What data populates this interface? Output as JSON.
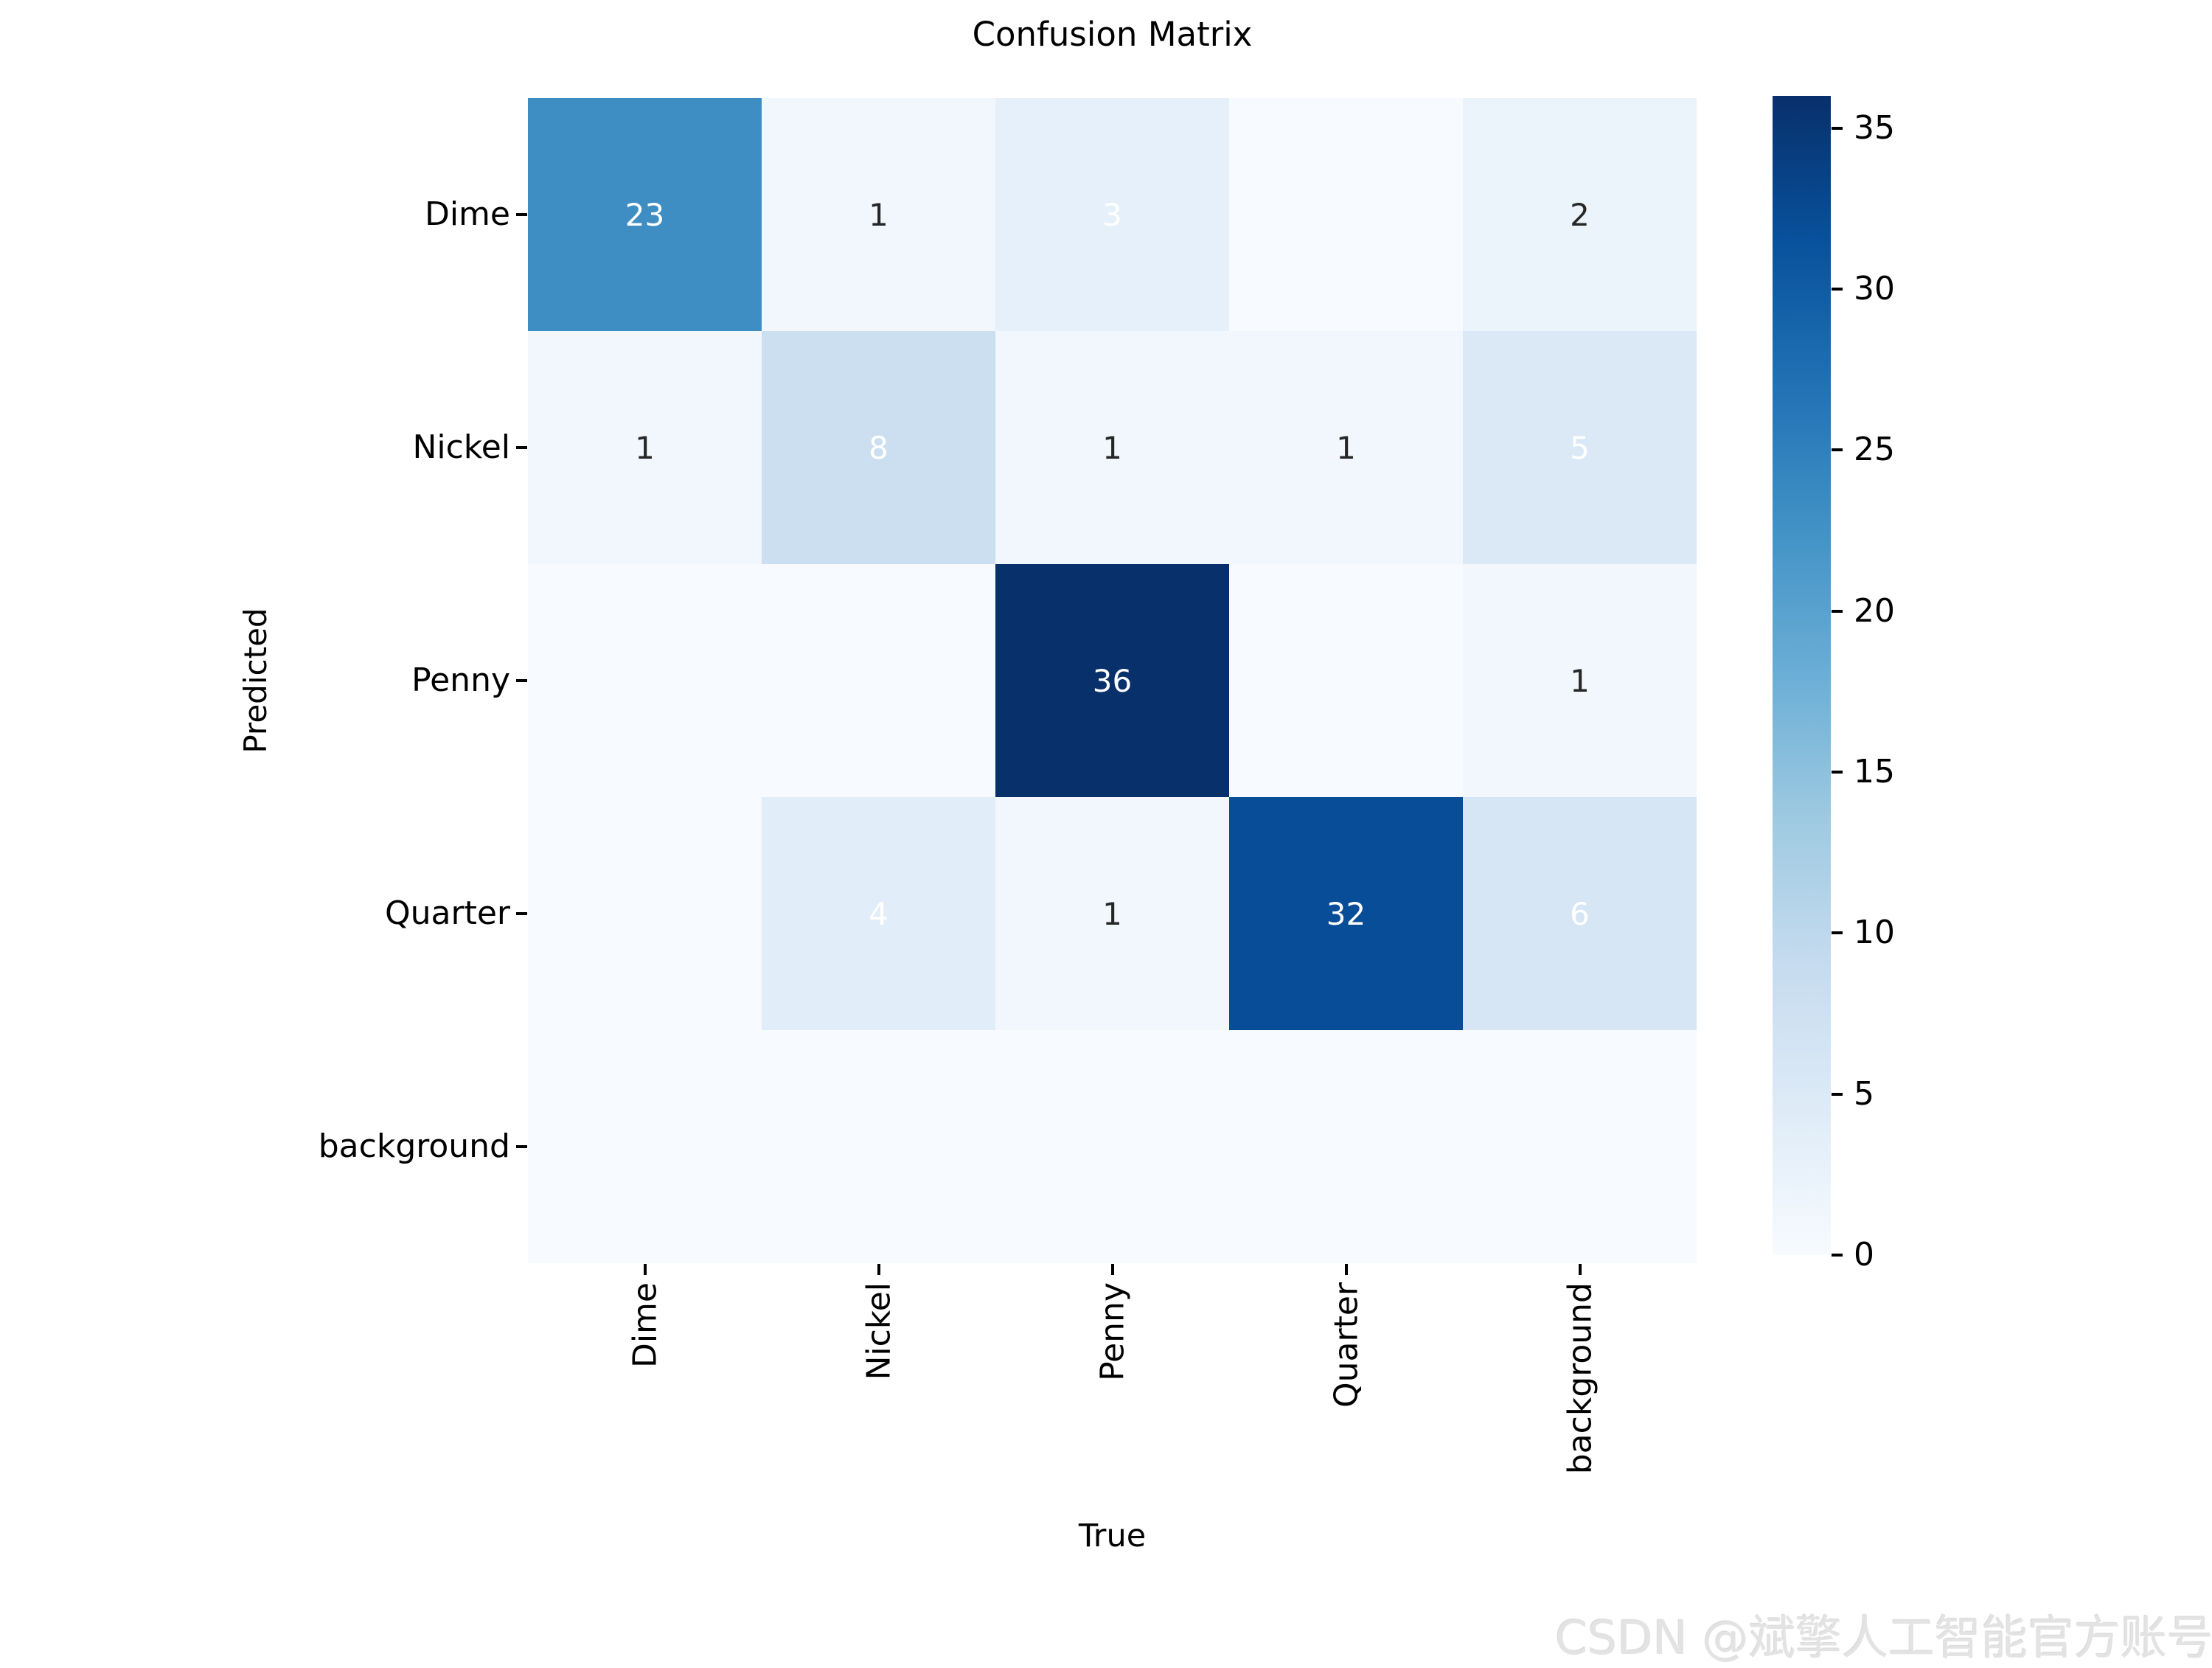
{
  "watermark": {
    "text": "CSDN @斌擎人工智能官方账号",
    "color": "#e3e3e3"
  },
  "chart_data": {
    "type": "heatmap",
    "title": "Confusion Matrix",
    "xlabel": "True",
    "ylabel": "Predicted",
    "x_categories": [
      "Dime",
      "Nickel",
      "Penny",
      "Quarter",
      "background"
    ],
    "y_categories": [
      "Dime",
      "Nickel",
      "Penny",
      "Quarter",
      "background"
    ],
    "matrix": [
      [
        23,
        1,
        3,
        0,
        2
      ],
      [
        1,
        8,
        1,
        1,
        5
      ],
      [
        0,
        0,
        36,
        0,
        1
      ],
      [
        0,
        4,
        1,
        32,
        6
      ],
      [
        0,
        0,
        0,
        0,
        0
      ]
    ],
    "hide_zero_annotations": true,
    "annot_white_min_value": 3,
    "annot_light_color": "#ffffff",
    "annot_dark_color": "#262626",
    "vmin": 0,
    "vmax": 36,
    "colormap": "Blues",
    "colormap_stops": [
      "#f7fbff",
      "#deebf7",
      "#c6dbef",
      "#9ecae1",
      "#6baed6",
      "#4292c6",
      "#2171b5",
      "#08519c",
      "#08306b"
    ],
    "colorbar_ticks": [
      0,
      5,
      10,
      15,
      20,
      25,
      30,
      35
    ],
    "colorbar_position": "right",
    "grid": false
  }
}
